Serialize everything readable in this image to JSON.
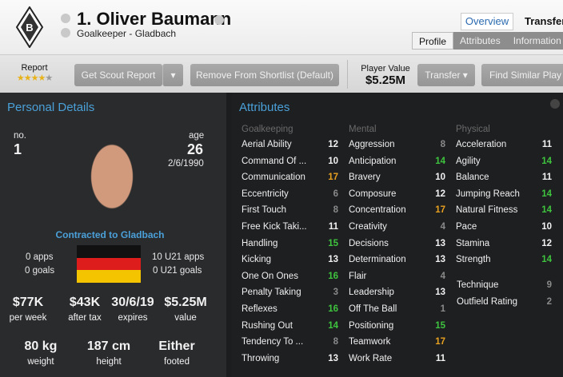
{
  "header": {
    "player_name": "1. Oliver Baumann",
    "subtitle": "Goalkeeper - Gladbach",
    "tabs": [
      "Overview",
      "Transfer"
    ],
    "subtabs": [
      "Profile",
      "Attributes",
      "Information"
    ],
    "active_subtab": "Profile"
  },
  "toolbar": {
    "report_label": "Report",
    "stars": 4,
    "stars_max": 5,
    "scout_button": "Get Scout Report",
    "shortlist_button": "Remove From Shortlist (Default)",
    "player_value_label": "Player Value",
    "player_value": "$5.25M",
    "transfer_button": "Transfer",
    "find_similar_button": "Find Similar Play"
  },
  "personal": {
    "title": "Personal Details",
    "no_label": "no.",
    "no": "1",
    "age_label": "age",
    "age": "26",
    "dob": "2/6/1990",
    "contract": "Contracted to Gladbach",
    "apps": "0 apps",
    "goals": "0 goals",
    "u21_apps": "10 U21 apps",
    "u21_goals": "0 U21 goals",
    "money": [
      {
        "v": "$77K",
        "l": "per week"
      },
      {
        "v": "$43K",
        "l": "after tax"
      },
      {
        "v": "30/6/19",
        "l": "expires"
      },
      {
        "v": "$5.25M",
        "l": "value"
      }
    ],
    "body": [
      {
        "v": "80 kg",
        "l": "weight"
      },
      {
        "v": "187 cm",
        "l": "height"
      },
      {
        "v": "Either",
        "l": "footed"
      }
    ],
    "flag_colors": [
      "#111111",
      "#dd1c1c",
      "#f4c400"
    ]
  },
  "attributes": {
    "title": "Attributes",
    "colors": {
      "high": "#3ec43e",
      "top": "#e8a020",
      "low": "#8a8a8a",
      "normal": "#f2f2f2"
    },
    "groups": [
      {
        "name": "Goalkeeping",
        "items": [
          [
            "Aerial Ability",
            12
          ],
          [
            "Command Of ...",
            10
          ],
          [
            "Communication",
            17
          ],
          [
            "Eccentricity",
            6
          ],
          [
            "First Touch",
            8
          ],
          [
            "Free Kick Taki...",
            11
          ],
          [
            "Handling",
            15
          ],
          [
            "Kicking",
            13
          ],
          [
            "One On Ones",
            16
          ],
          [
            "Penalty Taking",
            3
          ],
          [
            "Reflexes",
            16
          ],
          [
            "Rushing Out",
            14
          ],
          [
            "Tendency To ...",
            8
          ],
          [
            "Throwing",
            13
          ]
        ]
      },
      {
        "name": "Mental",
        "items": [
          [
            "Aggression",
            8
          ],
          [
            "Anticipation",
            14
          ],
          [
            "Bravery",
            10
          ],
          [
            "Composure",
            12
          ],
          [
            "Concentration",
            17
          ],
          [
            "Creativity",
            4
          ],
          [
            "Decisions",
            13
          ],
          [
            "Determination",
            13
          ],
          [
            "Flair",
            4
          ],
          [
            "Leadership",
            13
          ],
          [
            "Off The Ball",
            1
          ],
          [
            "Positioning",
            15
          ],
          [
            "Teamwork",
            17
          ],
          [
            "Work Rate",
            11
          ]
        ]
      },
      {
        "name": "Physical",
        "items": [
          [
            "Acceleration",
            11
          ],
          [
            "Agility",
            14
          ],
          [
            "Balance",
            11
          ],
          [
            "Jumping Reach",
            14
          ],
          [
            "Natural Fitness",
            14
          ],
          [
            "Pace",
            10
          ],
          [
            "Stamina",
            12
          ],
          [
            "Strength",
            14
          ]
        ]
      }
    ],
    "extra": [
      [
        "Technique",
        9
      ],
      [
        "Outfield Rating",
        2
      ]
    ]
  }
}
